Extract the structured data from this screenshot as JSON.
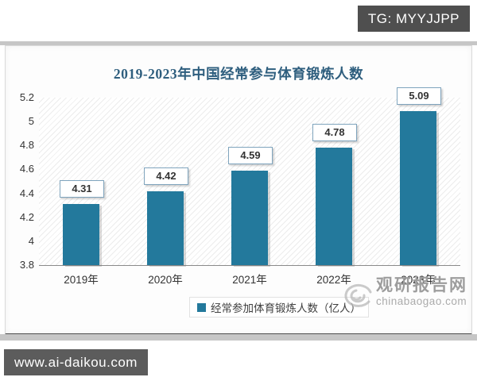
{
  "page": {
    "top_badge": "TG: MYYJJPP",
    "bottom_badge": "www.ai-daikou.com"
  },
  "chart_data": {
    "type": "bar",
    "title": "2019-2023年中国经常参与体育锻炼人数",
    "categories": [
      "2019年",
      "2020年",
      "2021年",
      "2022年",
      "2023年"
    ],
    "values": [
      4.31,
      4.42,
      4.59,
      4.78,
      5.09
    ],
    "series_name": "经常参加体育锻炼人数（亿人）",
    "ylim": [
      3.8,
      5.2
    ],
    "ytick_labels": [
      "3.8",
      "4",
      "4.2",
      "4.4",
      "4.6",
      "4.8",
      "5",
      "5.2"
    ],
    "value_labels_shown": true,
    "grid": false,
    "legend_position": "bottom",
    "bar_color": "#23799c",
    "title_color": "#2e5e7e",
    "plot_background": "diagonal-hatch"
  },
  "watermark": {
    "site_name": "观研报告网",
    "site_domain": "chinabaogao.com"
  }
}
